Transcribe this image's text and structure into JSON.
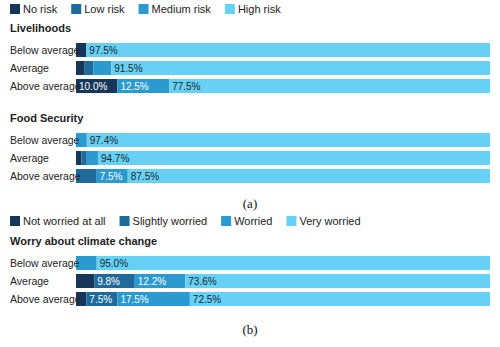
{
  "chart_data": [
    {
      "type": "bar",
      "orientation": "horizontal",
      "stacked": true,
      "data_labels": true,
      "legend": "top",
      "tick_labels": false,
      "caption": "(a)",
      "annotations": [
        {
          "text": "Livelihoods"
        },
        {
          "text": "Food Security"
        }
      ],
      "categories": [
        "Below average",
        "Average",
        "Above average",
        "Below average",
        "Average",
        "Above average"
      ],
      "xlim": [
        0,
        100
      ],
      "series": [
        {
          "name": "No risk",
          "color": "#16375a",
          "values": [
            2.5,
            2.1,
            10.0,
            0,
            1.3,
            0
          ],
          "value_labels": [
            null,
            null,
            "10.0%",
            null,
            null,
            null
          ]
        },
        {
          "name": "Low risk",
          "color": "#1f6a9a",
          "values": [
            0,
            2.1,
            0,
            0,
            1.3,
            5.0
          ]
        },
        {
          "name": "Medium risk",
          "color": "#2a9ad0",
          "values": [
            0,
            4.3,
            12.5,
            2.6,
            2.7,
            7.5
          ],
          "value_labels": [
            null,
            null,
            "12.5%",
            null,
            null,
            "7.5%"
          ]
        },
        {
          "name": "High risk",
          "color": "#66d1f5",
          "values": [
            97.5,
            91.5,
            77.5,
            97.4,
            94.7,
            87.5
          ],
          "value_labels": [
            "97.5%",
            "91.5%",
            "77.5%",
            "97.4%",
            "94.7%",
            "87.5%"
          ]
        }
      ]
    },
    {
      "type": "bar",
      "orientation": "horizontal",
      "stacked": true,
      "data_labels": true,
      "legend": "top",
      "tick_labels": false,
      "caption": "(b)",
      "annotations": [
        {
          "text": "Worry about climate change"
        }
      ],
      "categories": [
        "Below average",
        "Average",
        "Above average"
      ],
      "xlim": [
        0,
        100
      ],
      "series": [
        {
          "name": "Not worried at all",
          "color": "#16375a",
          "values": [
            0,
            4.4,
            2.5
          ]
        },
        {
          "name": "Slightly worried",
          "color": "#1f6a9a",
          "values": [
            0,
            9.8,
            7.5
          ],
          "value_labels": [
            null,
            "9.8%",
            "7.5%"
          ]
        },
        {
          "name": "Worried",
          "color": "#2a9ad0",
          "values": [
            5.0,
            12.2,
            17.5
          ],
          "value_labels": [
            null,
            "12.2%",
            "17.5%"
          ]
        },
        {
          "name": "Very worried",
          "color": "#66d1f5",
          "values": [
            95.0,
            73.6,
            72.5
          ],
          "value_labels": [
            "95.0%",
            "73.6%",
            "72.5%"
          ]
        }
      ]
    }
  ]
}
